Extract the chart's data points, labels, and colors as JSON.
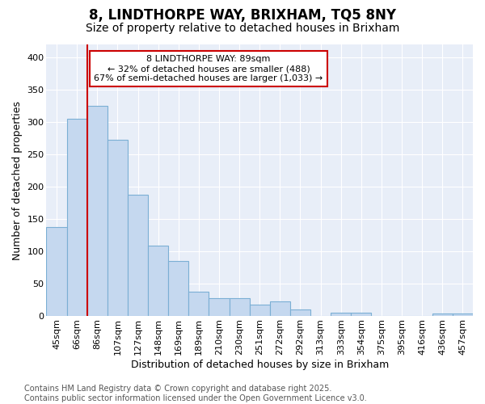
{
  "title": "8, LINDTHORPE WAY, BRIXHAM, TQ5 8NY",
  "subtitle": "Size of property relative to detached houses in Brixham",
  "xlabel": "Distribution of detached houses by size in Brixham",
  "ylabel": "Number of detached properties",
  "categories": [
    "45sqm",
    "66sqm",
    "86sqm",
    "107sqm",
    "127sqm",
    "148sqm",
    "169sqm",
    "189sqm",
    "210sqm",
    "230sqm",
    "251sqm",
    "272sqm",
    "292sqm",
    "313sqm",
    "333sqm",
    "354sqm",
    "375sqm",
    "395sqm",
    "416sqm",
    "436sqm",
    "457sqm"
  ],
  "values": [
    137,
    305,
    325,
    273,
    187,
    109,
    85,
    38,
    27,
    27,
    17,
    22,
    10,
    0,
    5,
    5,
    0,
    0,
    0,
    4,
    4
  ],
  "bar_color": "#c5d8ef",
  "bar_edgecolor": "#7bafd4",
  "bar_width": 1.0,
  "property_line_x": 1.5,
  "property_line_color": "#cc0000",
  "annotation_text": "8 LINDTHORPE WAY: 89sqm\n← 32% of detached houses are smaller (488)\n67% of semi-detached houses are larger (1,033) →",
  "annotation_box_facecolor": "white",
  "annotation_box_edgecolor": "#cc0000",
  "ylim": [
    0,
    420
  ],
  "yticks": [
    0,
    50,
    100,
    150,
    200,
    250,
    300,
    350,
    400
  ],
  "background_color": "#ffffff",
  "plot_bg_color": "#e8eef8",
  "grid_color": "#ffffff",
  "title_fontsize": 12,
  "subtitle_fontsize": 10,
  "axis_label_fontsize": 9,
  "tick_fontsize": 8,
  "annotation_fontsize": 8,
  "footnote_fontsize": 7,
  "footnote": "Contains HM Land Registry data © Crown copyright and database right 2025.\nContains public sector information licensed under the Open Government Licence v3.0."
}
